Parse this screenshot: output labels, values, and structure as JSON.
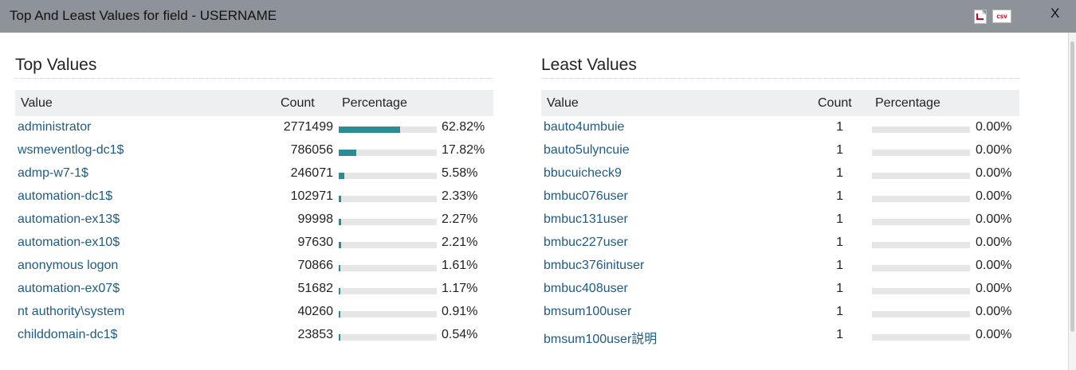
{
  "dialog": {
    "title": "Top And Least Values for field - USERNAME",
    "close_label": "X",
    "export_csv_label": "csv",
    "pdf_icon": "pdf-export-icon",
    "csv_icon": "csv-export-icon"
  },
  "colors": {
    "bar_fill": "#2b8d93",
    "bar_track": "#e6e6e6",
    "link": "#1f5b82",
    "titlebar": "#8e9399"
  },
  "top_values": {
    "heading": "Top Values",
    "columns": {
      "value": "Value",
      "count": "Count",
      "percentage": "Percentage"
    },
    "rows": [
      {
        "value": "administrator",
        "count": "2771499",
        "percentage": "62.82%",
        "fraction": 0.6282
      },
      {
        "value": "wsmeventlog-dc1$",
        "count": "786056",
        "percentage": "17.82%",
        "fraction": 0.1782
      },
      {
        "value": "admp-w7-1$",
        "count": "246071",
        "percentage": "5.58%",
        "fraction": 0.0558
      },
      {
        "value": "automation-dc1$",
        "count": "102971",
        "percentage": "2.33%",
        "fraction": 0.0233
      },
      {
        "value": "automation-ex13$",
        "count": "99998",
        "percentage": "2.27%",
        "fraction": 0.0227
      },
      {
        "value": "automation-ex10$",
        "count": "97630",
        "percentage": "2.21%",
        "fraction": 0.0221
      },
      {
        "value": "anonymous logon",
        "count": "70866",
        "percentage": "1.61%",
        "fraction": 0.0161
      },
      {
        "value": "automation-ex07$",
        "count": "51682",
        "percentage": "1.17%",
        "fraction": 0.0117
      },
      {
        "value": "nt authority\\system",
        "count": "40260",
        "percentage": "0.91%",
        "fraction": 0.0091
      },
      {
        "value": "childdomain-dc1$",
        "count": "23853",
        "percentage": "0.54%",
        "fraction": 0.0054
      }
    ]
  },
  "least_values": {
    "heading": "Least Values",
    "columns": {
      "value": "Value",
      "count": "Count",
      "percentage": "Percentage"
    },
    "rows": [
      {
        "value": "bauto4umbuie",
        "count": "1",
        "percentage": "0.00%",
        "fraction": 0
      },
      {
        "value": "bauto5ulyncuie",
        "count": "1",
        "percentage": "0.00%",
        "fraction": 0
      },
      {
        "value": "bbucuicheck9",
        "count": "1",
        "percentage": "0.00%",
        "fraction": 0
      },
      {
        "value": "bmbuc076user",
        "count": "1",
        "percentage": "0.00%",
        "fraction": 0
      },
      {
        "value": "bmbuc131user",
        "count": "1",
        "percentage": "0.00%",
        "fraction": 0
      },
      {
        "value": "bmbuc227user",
        "count": "1",
        "percentage": "0.00%",
        "fraction": 0
      },
      {
        "value": "bmbuc376inituser",
        "count": "1",
        "percentage": "0.00%",
        "fraction": 0
      },
      {
        "value": "bmbuc408user",
        "count": "1",
        "percentage": "0.00%",
        "fraction": 0
      },
      {
        "value": "bmsum100user",
        "count": "1",
        "percentage": "0.00%",
        "fraction": 0
      },
      {
        "value": "bmsum100user説明",
        "count": "1",
        "percentage": "0.00%",
        "fraction": 0
      }
    ]
  }
}
